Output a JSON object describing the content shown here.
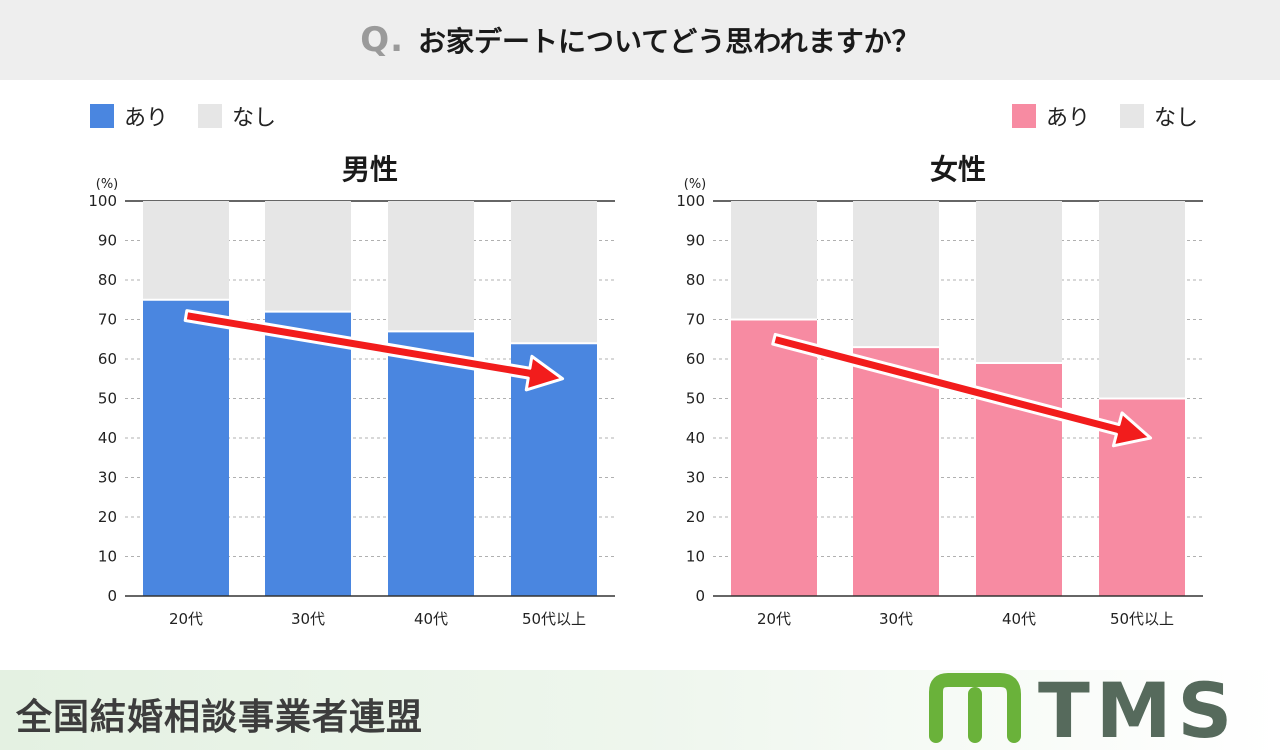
{
  "header": {
    "q_mark": "Q.",
    "question": "お家デートについてどう思われますか？"
  },
  "legend": {
    "yes": "あり",
    "no": "なし"
  },
  "colors": {
    "male_yes": "#4a86e0",
    "female_yes": "#f78ba2",
    "no": "#e6e6e6",
    "arrow": "#f21c1c"
  },
  "chart_data": [
    {
      "type": "bar",
      "stacked": true,
      "title": "男性",
      "unit_label": "(%)",
      "categories": [
        "20代",
        "30代",
        "40代",
        "50代以上"
      ],
      "series": [
        {
          "name": "あり",
          "values": [
            75,
            72,
            67,
            64
          ]
        },
        {
          "name": "なし",
          "values": [
            25,
            28,
            33,
            36
          ]
        }
      ],
      "ylim": [
        0,
        100
      ],
      "yticks": [
        0,
        10,
        20,
        30,
        40,
        50,
        60,
        70,
        80,
        90,
        100
      ],
      "trend_arrow": {
        "from_category": "20代",
        "to_category": "50代以上",
        "from_value": 71,
        "to_value": 55
      }
    },
    {
      "type": "bar",
      "stacked": true,
      "title": "女性",
      "unit_label": "(%)",
      "categories": [
        "20代",
        "30代",
        "40代",
        "50代以上"
      ],
      "series": [
        {
          "name": "あり",
          "values": [
            70,
            63,
            59,
            50
          ]
        },
        {
          "name": "なし",
          "values": [
            30,
            37,
            41,
            50
          ]
        }
      ],
      "ylim": [
        0,
        100
      ],
      "yticks": [
        0,
        10,
        20,
        30,
        40,
        50,
        60,
        70,
        80,
        90,
        100
      ],
      "trend_arrow": {
        "from_category": "20代",
        "to_category": "50代以上",
        "from_value": 65,
        "to_value": 40
      }
    }
  ],
  "footer": {
    "organization": "全国結婚相談事業者連盟",
    "logo_text": "TMS"
  }
}
